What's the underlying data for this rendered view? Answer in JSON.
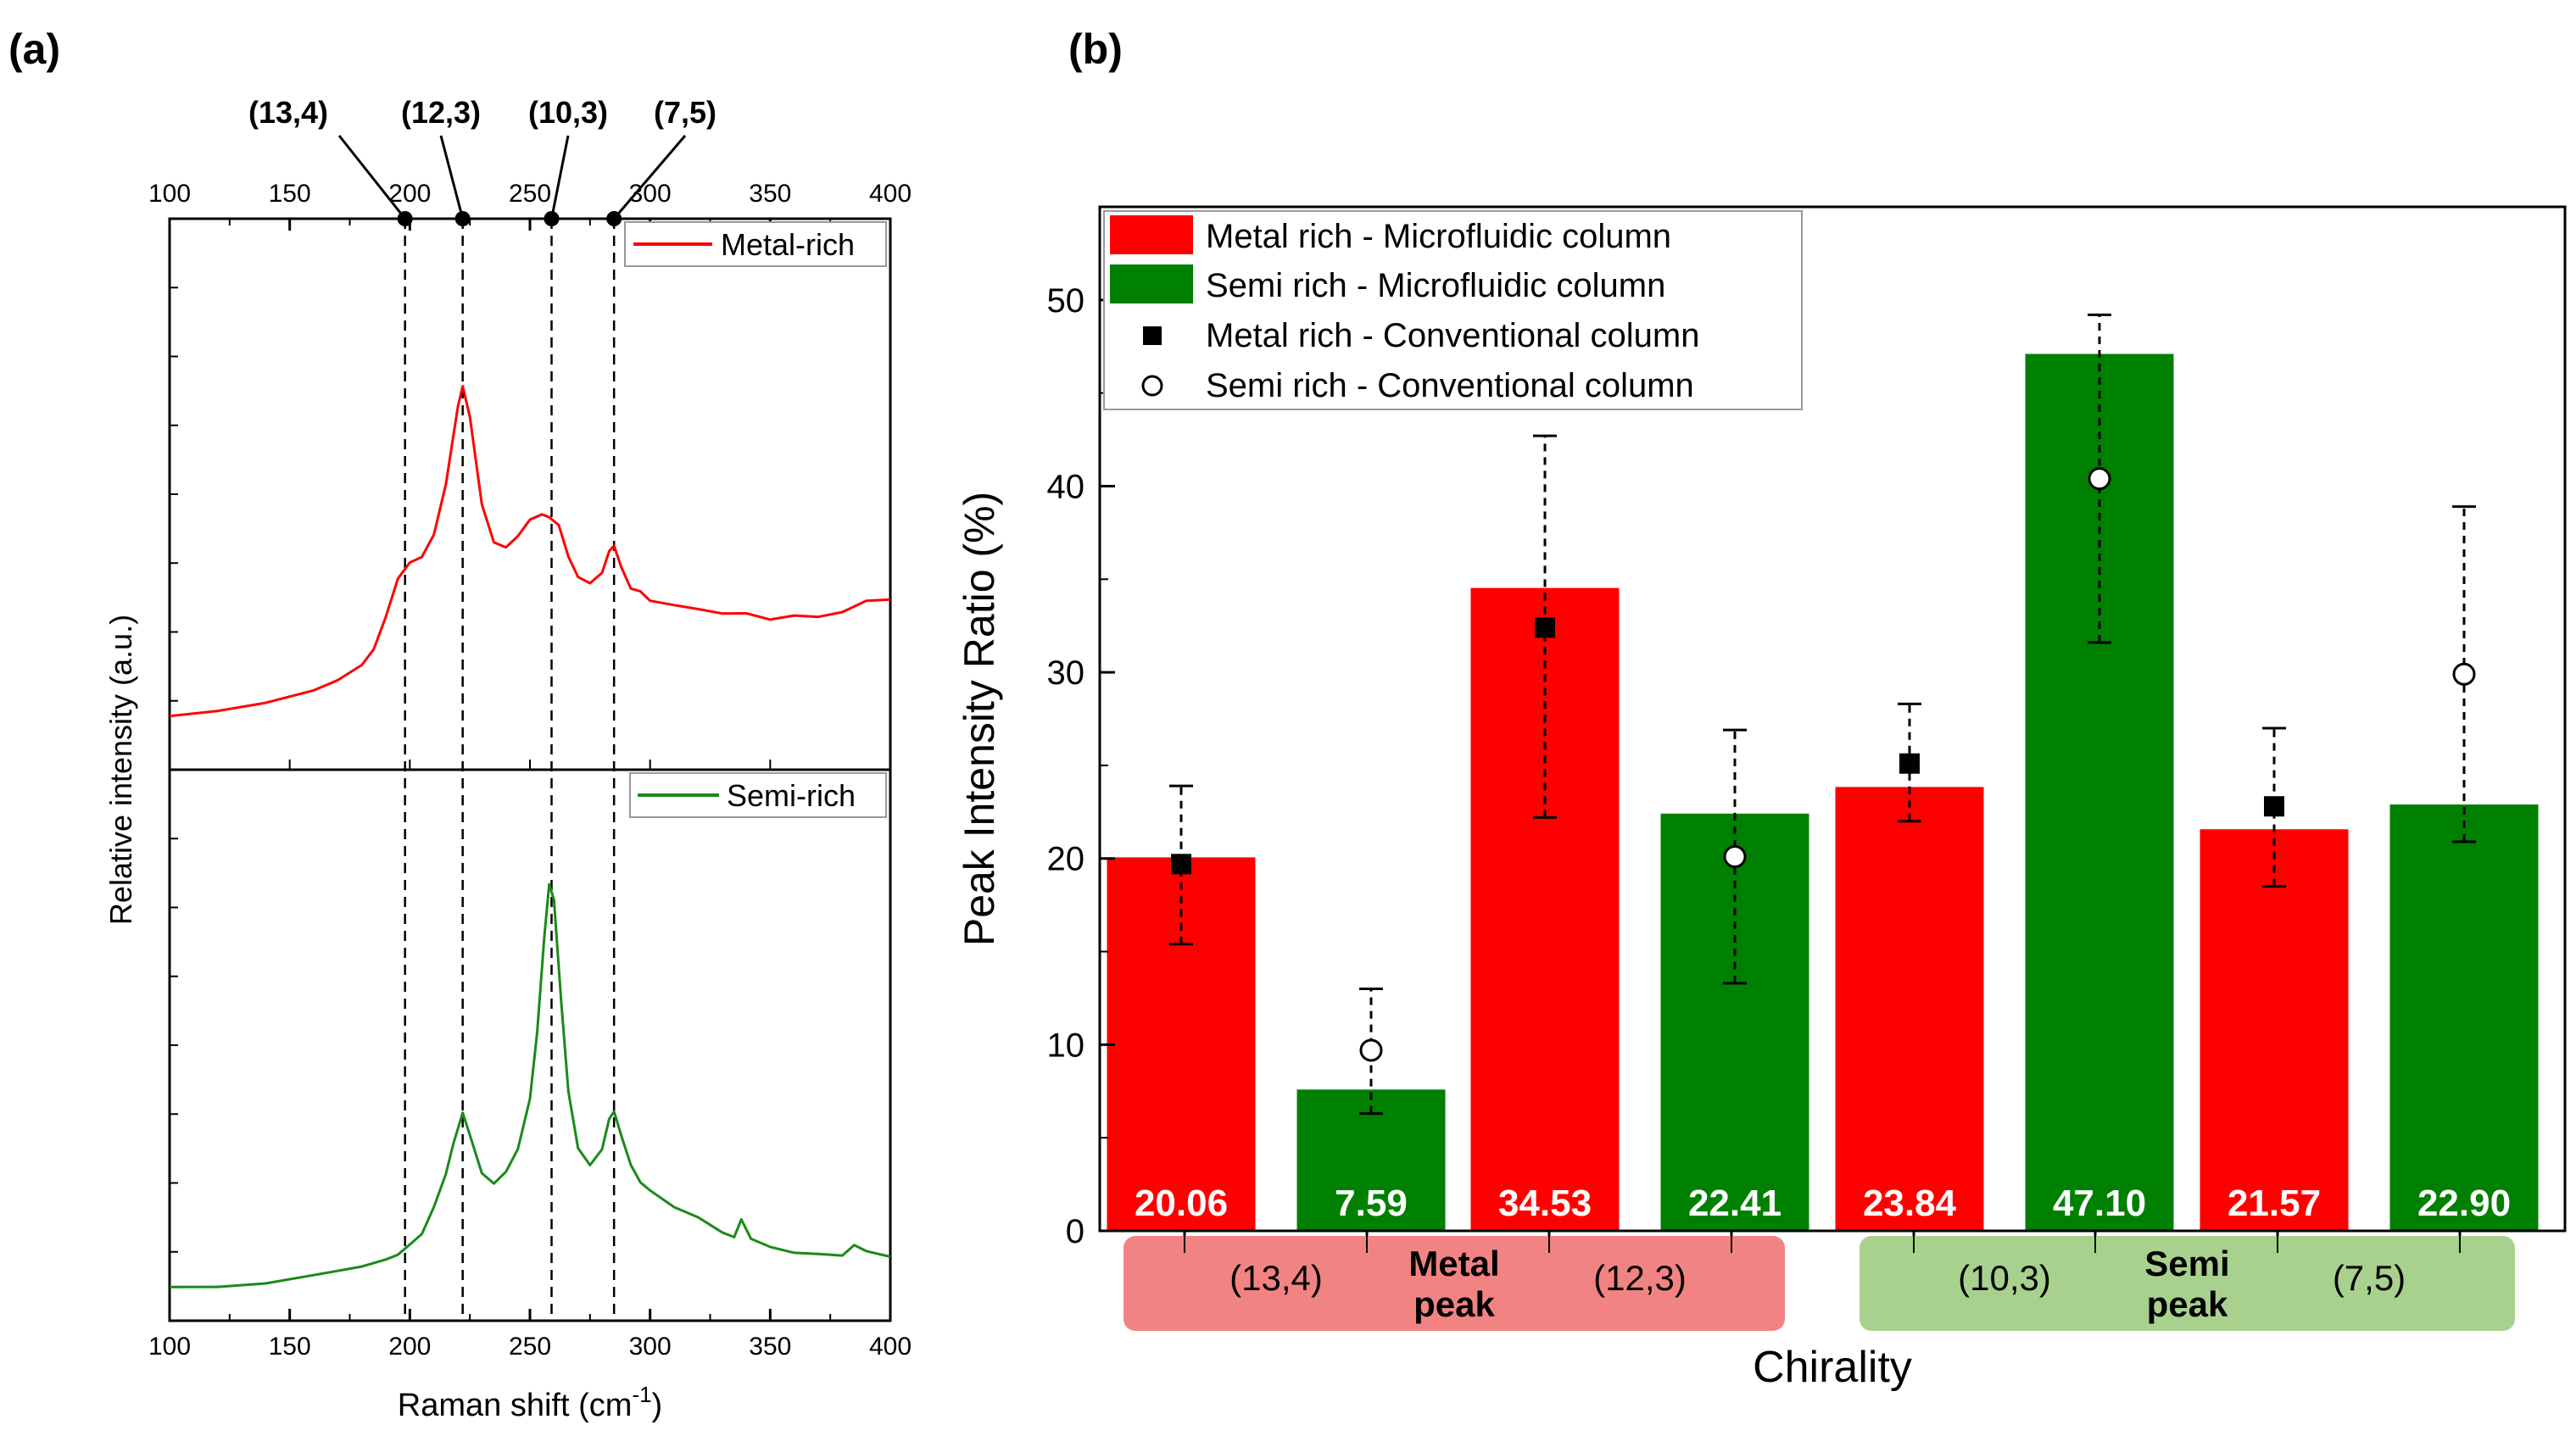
{
  "chart_data": [
    {
      "type": "line",
      "panel_label": "(a)",
      "xlabel": "Raman shift (cm",
      "xlabel_sup": "-1",
      "xlabel_close": ")",
      "ylabel": "Relative intensity (a.u.)",
      "xlim": [
        100,
        400
      ],
      "xticks": [
        "100",
        "150",
        "200",
        "250",
        "300",
        "350",
        "400"
      ],
      "chirality_markers": [
        {
          "label": "(13,4)",
          "x": 198
        },
        {
          "label": "(12,3)",
          "x": 222
        },
        {
          "label": "(10,3)",
          "x": 259
        },
        {
          "label": "(7,5)",
          "x": 285
        }
      ],
      "series": [
        {
          "name": "Metal-rich",
          "color": "#ff0000",
          "ylim": [
            0,
            1
          ],
          "x": [
            100,
            120,
            140,
            160,
            170,
            180,
            185,
            190,
            195,
            200,
            205,
            210,
            215,
            220,
            222,
            225,
            230,
            235,
            240,
            245,
            250,
            255,
            258,
            262,
            266,
            270,
            275,
            280,
            283,
            285,
            288,
            292,
            296,
            300,
            310,
            320,
            330,
            340,
            350,
            360,
            370,
            380,
            390,
            400
          ],
          "y": [
            0.1,
            0.11,
            0.12,
            0.14,
            0.16,
            0.19,
            0.22,
            0.28,
            0.35,
            0.38,
            0.39,
            0.43,
            0.52,
            0.66,
            0.7,
            0.64,
            0.48,
            0.41,
            0.4,
            0.42,
            0.45,
            0.46,
            0.46,
            0.44,
            0.39,
            0.35,
            0.34,
            0.36,
            0.4,
            0.41,
            0.37,
            0.33,
            0.32,
            0.31,
            0.3,
            0.29,
            0.28,
            0.28,
            0.27,
            0.28,
            0.28,
            0.29,
            0.31,
            0.31
          ]
        },
        {
          "name": "Semi-rich",
          "color": "#1a8a1a",
          "ylim": [
            0,
            1
          ],
          "x": [
            100,
            120,
            140,
            160,
            180,
            190,
            195,
            200,
            205,
            210,
            215,
            218,
            222,
            225,
            230,
            235,
            240,
            245,
            250,
            253,
            256,
            258,
            260,
            263,
            266,
            270,
            275,
            280,
            283,
            285,
            288,
            292,
            296,
            300,
            310,
            320,
            330,
            335,
            338,
            342,
            350,
            360,
            370,
            380,
            385,
            390,
            400
          ],
          "y": [
            0.06,
            0.065,
            0.07,
            0.08,
            0.095,
            0.11,
            0.12,
            0.14,
            0.16,
            0.21,
            0.27,
            0.32,
            0.38,
            0.34,
            0.27,
            0.25,
            0.27,
            0.31,
            0.4,
            0.52,
            0.7,
            0.79,
            0.76,
            0.58,
            0.42,
            0.31,
            0.28,
            0.31,
            0.37,
            0.38,
            0.34,
            0.28,
            0.25,
            0.24,
            0.21,
            0.19,
            0.16,
            0.15,
            0.18,
            0.15,
            0.13,
            0.12,
            0.12,
            0.12,
            0.14,
            0.13,
            0.12
          ]
        }
      ]
    },
    {
      "type": "bar",
      "panel_label": "(b)",
      "xlabel": "Chirality",
      "ylabel": "Peak Intensity Ratio (%)",
      "ylim": [
        0,
        55
      ],
      "yticks": [
        "0",
        "10",
        "20",
        "30",
        "40",
        "50"
      ],
      "categories": [
        "(13,4)",
        "(12,3)",
        "(10,3)",
        "(7,5)"
      ],
      "groups": [
        {
          "label_line1": "Metal",
          "label_line2": "peak",
          "categories": [
            "(13,4)",
            "(12,3)"
          ],
          "color": "#f28383"
        },
        {
          "label_line1": "Semi",
          "label_line2": "peak",
          "categories": [
            "(10,3)",
            "(7,5)"
          ],
          "color": "#a9d18e"
        }
      ],
      "series": [
        {
          "name": "Metal rich - Microfluidic column",
          "kind": "bar",
          "color": "#ff0000",
          "values": [
            20.06,
            34.53,
            23.84,
            21.57
          ],
          "value_labels": [
            "20.06",
            "34.53",
            "23.84",
            "21.57"
          ]
        },
        {
          "name": "Semi rich - Microfluidic column",
          "kind": "bar",
          "color": "#008000",
          "values": [
            7.59,
            22.41,
            47.1,
            22.9
          ],
          "value_labels": [
            "7.59",
            "22.41",
            "47.10",
            "22.90"
          ]
        },
        {
          "name": "Metal rich - Conventional column",
          "kind": "point",
          "marker": "filled-square",
          "values": [
            19.7,
            32.4,
            25.1,
            22.8
          ],
          "err_low": [
            15.4,
            22.2,
            22.0,
            18.5
          ],
          "err_high": [
            23.9,
            42.7,
            28.3,
            27.0
          ]
        },
        {
          "name": "Semi rich - Conventional column",
          "kind": "point",
          "marker": "open-circle",
          "values": [
            9.7,
            20.1,
            40.4,
            29.9
          ],
          "err_low": [
            6.3,
            13.3,
            31.6,
            20.9
          ],
          "err_high": [
            13.0,
            26.9,
            49.2,
            38.9
          ]
        }
      ]
    }
  ]
}
